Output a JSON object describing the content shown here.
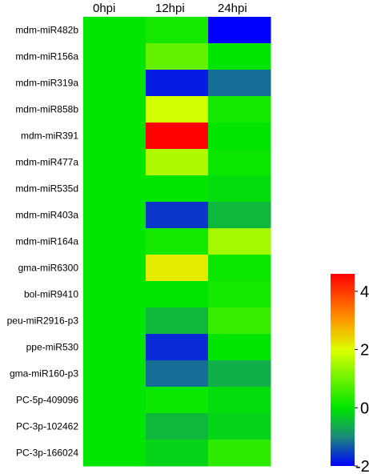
{
  "chart_data": {
    "type": "heatmap",
    "columns": [
      "0hpi",
      "12hpi",
      "24hpi"
    ],
    "rows": [
      "mdm-miR482b",
      "mdm-miR156a",
      "mdm-miR319a",
      "mdm-miR858b",
      "mdm-miR391",
      "mdm-miR477a",
      "mdm-miR535d",
      "mdm-miR403a",
      "mdm-miR164a",
      "gma-miR6300",
      "bol-miR9410",
      "peu-miR2916-p3",
      "ppe-miR530",
      "gma-miR160-p3",
      "PC-5p-409096",
      "PC-3p-102462",
      "PC-3p-166024"
    ],
    "values": [
      [
        0,
        0.2,
        -2.0
      ],
      [
        0,
        0.9,
        0.0
      ],
      [
        0,
        -1.8,
        -1.2
      ],
      [
        0,
        1.9,
        0.2
      ],
      [
        0,
        4.6,
        0.0
      ],
      [
        0,
        1.6,
        0.1
      ],
      [
        0,
        0.0,
        -0.1
      ],
      [
        0,
        -1.6,
        -0.5
      ],
      [
        0,
        0.2,
        1.5
      ],
      [
        0,
        2.2,
        0.1
      ],
      [
        0,
        0.0,
        0.2
      ],
      [
        0,
        -0.5,
        0.5
      ],
      [
        0,
        -1.7,
        0.0
      ],
      [
        0,
        -1.2,
        -0.6
      ],
      [
        0,
        0.1,
        -0.1
      ],
      [
        0,
        -0.5,
        -0.2
      ],
      [
        0,
        -0.2,
        0.4
      ]
    ],
    "colorbar": {
      "min": -2,
      "max": 4.6,
      "ticks": [
        4,
        2,
        0,
        -2
      ],
      "tick_labels": [
        "4",
        "2",
        "0",
        "-2"
      ],
      "stops": [
        "#0000ff",
        "#1a8a7a",
        "#00e600",
        "#dcff00",
        "#ff9900",
        "#ff0000"
      ],
      "stop_values": [
        -2,
        -1,
        0,
        2,
        3,
        4.6
      ]
    }
  }
}
